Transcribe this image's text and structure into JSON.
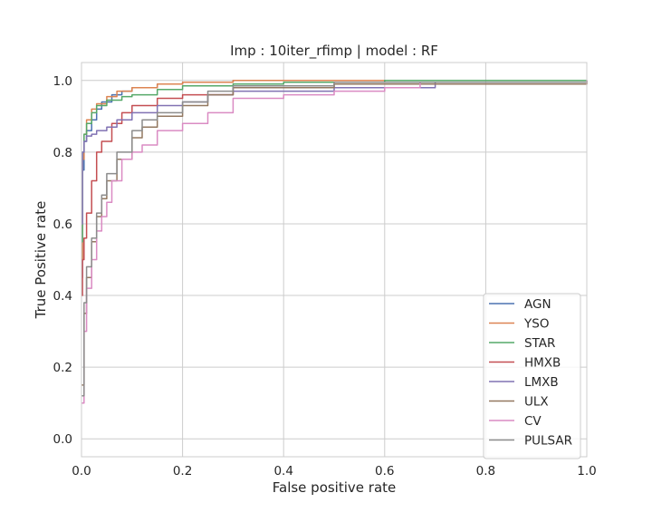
{
  "chart_data": {
    "type": "line",
    "title": "Imp : 10iter_rfimp | model : RF",
    "xlabel": "False positive rate",
    "ylabel": "True Positive rate",
    "xlim": [
      0.0,
      1.0
    ],
    "ylim": [
      -0.05,
      1.05
    ],
    "xticks": [
      "0.0",
      "0.2",
      "0.4",
      "0.6",
      "0.8",
      "1.0"
    ],
    "yticks": [
      "0.0",
      "0.2",
      "0.4",
      "0.6",
      "0.8",
      "1.0"
    ],
    "grid": true,
    "legend_position": "lower right",
    "series": [
      {
        "name": "AGN",
        "color": "#4c72b0",
        "x": [
          0,
          0.002,
          0.005,
          0.01,
          0.02,
          0.03,
          0.04,
          0.06,
          0.08,
          0.1,
          0.15,
          0.2,
          0.3,
          0.5,
          1.0
        ],
        "y": [
          0.45,
          0.75,
          0.83,
          0.86,
          0.89,
          0.92,
          0.94,
          0.96,
          0.97,
          0.98,
          0.99,
          0.995,
          1.0,
          1.0,
          1.0
        ]
      },
      {
        "name": "YSO",
        "color": "#dd8452",
        "x": [
          0,
          0.002,
          0.005,
          0.01,
          0.02,
          0.03,
          0.05,
          0.07,
          0.1,
          0.15,
          0.2,
          0.3,
          0.5,
          1.0
        ],
        "y": [
          0.5,
          0.78,
          0.85,
          0.89,
          0.92,
          0.935,
          0.955,
          0.97,
          0.98,
          0.99,
          0.995,
          1.0,
          1.0,
          1.0
        ]
      },
      {
        "name": "STAR",
        "color": "#55a868",
        "x": [
          0,
          0.002,
          0.005,
          0.01,
          0.02,
          0.03,
          0.05,
          0.08,
          0.1,
          0.15,
          0.2,
          0.3,
          0.4,
          0.6,
          1.0
        ],
        "y": [
          0.55,
          0.8,
          0.85,
          0.88,
          0.91,
          0.93,
          0.945,
          0.955,
          0.96,
          0.975,
          0.985,
          0.99,
          0.995,
          1.0,
          1.0
        ]
      },
      {
        "name": "HMXB",
        "color": "#c44e52",
        "x": [
          0,
          0.002,
          0.005,
          0.01,
          0.02,
          0.03,
          0.04,
          0.06,
          0.08,
          0.1,
          0.15,
          0.2,
          0.3,
          0.5,
          1.0
        ],
        "y": [
          0.4,
          0.5,
          0.56,
          0.63,
          0.72,
          0.8,
          0.83,
          0.88,
          0.91,
          0.93,
          0.95,
          0.96,
          0.98,
          0.99,
          1.0
        ]
      },
      {
        "name": "LMXB",
        "color": "#8172b3",
        "x": [
          0,
          0.002,
          0.005,
          0.01,
          0.02,
          0.03,
          0.05,
          0.07,
          0.1,
          0.15,
          0.2,
          0.25,
          0.3,
          0.5,
          0.7,
          1.0
        ],
        "y": [
          0.6,
          0.8,
          0.83,
          0.845,
          0.85,
          0.86,
          0.87,
          0.89,
          0.91,
          0.93,
          0.94,
          0.96,
          0.97,
          0.98,
          0.995,
          1.0
        ]
      },
      {
        "name": "ULX",
        "color": "#937860",
        "x": [
          0,
          0.005,
          0.01,
          0.02,
          0.03,
          0.04,
          0.05,
          0.07,
          0.1,
          0.12,
          0.15,
          0.2,
          0.25,
          0.3,
          0.5,
          1.0
        ],
        "y": [
          0.15,
          0.35,
          0.45,
          0.55,
          0.62,
          0.67,
          0.72,
          0.78,
          0.84,
          0.87,
          0.9,
          0.93,
          0.96,
          0.98,
          0.99,
          1.0
        ]
      },
      {
        "name": "CV",
        "color": "#da8bc3",
        "x": [
          0,
          0.005,
          0.01,
          0.02,
          0.03,
          0.04,
          0.05,
          0.06,
          0.08,
          0.1,
          0.12,
          0.15,
          0.2,
          0.25,
          0.3,
          0.4,
          0.5,
          0.6,
          0.67,
          1.0
        ],
        "y": [
          0.1,
          0.3,
          0.42,
          0.5,
          0.58,
          0.62,
          0.66,
          0.72,
          0.78,
          0.8,
          0.82,
          0.86,
          0.88,
          0.91,
          0.95,
          0.96,
          0.97,
          0.98,
          0.995,
          1.0
        ]
      },
      {
        "name": "PULSAR",
        "color": "#8c8c8c",
        "x": [
          0,
          0.005,
          0.01,
          0.02,
          0.03,
          0.04,
          0.05,
          0.07,
          0.1,
          0.12,
          0.15,
          0.2,
          0.25,
          0.3,
          0.5,
          1.0
        ],
        "y": [
          0.12,
          0.38,
          0.48,
          0.56,
          0.63,
          0.68,
          0.74,
          0.8,
          0.86,
          0.89,
          0.91,
          0.94,
          0.97,
          0.985,
          0.995,
          1.0
        ]
      }
    ]
  }
}
